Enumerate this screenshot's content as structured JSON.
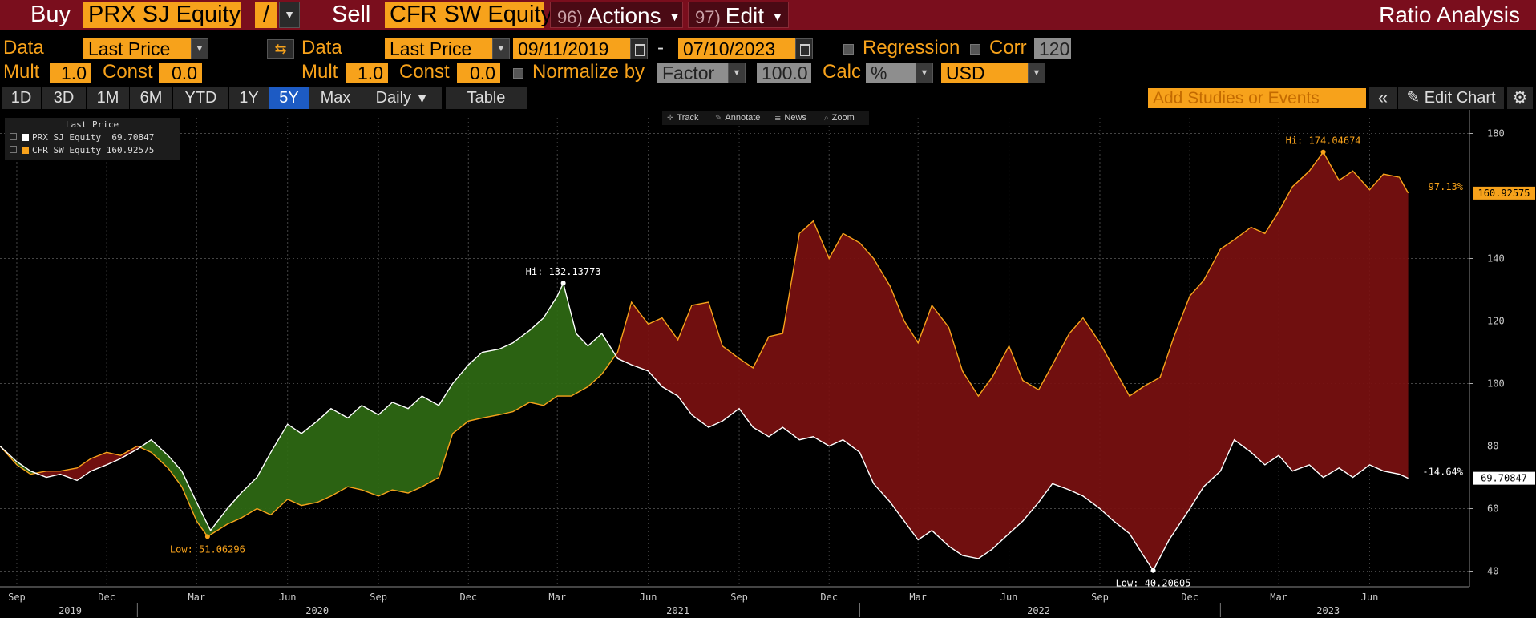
{
  "topbar": {
    "buy_label": "Buy",
    "buy_ticker": "PRX SJ Equity",
    "operator": "/",
    "sell_label": "Sell",
    "sell_ticker": "CFR SW Equity",
    "actions_num": "96)",
    "actions_label": "Actions",
    "edit_num": "97)",
    "edit_label": "Edit",
    "title": "Ratio Analysis"
  },
  "row1": {
    "data_label_1": "Data",
    "data_value_1": "Last Price",
    "data_label_2": "Data",
    "data_value_2": "Last Price",
    "start_date": "09/11/2019",
    "date_sep": "-",
    "end_date": "07/10/2023",
    "regression_label": "Regression",
    "corr_label": "Corr",
    "corr_value": "120"
  },
  "row2": {
    "mult_label_1": "Mult",
    "mult_value_1": "1.0",
    "const_label_1": "Const",
    "const_value_1": "0.0",
    "mult_label_2": "Mult",
    "mult_value_2": "1.0",
    "const_label_2": "Const",
    "const_value_2": "0.0",
    "normalize_label": "Normalize by",
    "normalize_value": "Factor",
    "normalize_amount": "100.0",
    "calc_label": "Calc",
    "calc_value": "%",
    "currency": "USD"
  },
  "rangebar": {
    "ranges": [
      "1D",
      "3D",
      "1M",
      "6M",
      "YTD",
      "1Y",
      "5Y",
      "Max"
    ],
    "active": "5Y",
    "frequency": "Daily",
    "table_label": "Table",
    "studies_placeholder": "Add Studies or Events",
    "edit_chart_label": "Edit Chart"
  },
  "chart_tools": [
    "Track",
    "Annotate",
    "News",
    "Zoom"
  ],
  "chart_data": {
    "type": "line",
    "legend": {
      "header": "Last Price",
      "placement": "top-left",
      "items": [
        {
          "name": "PRX SJ Equity",
          "value": "69.70847",
          "color": "#ffffff"
        },
        {
          "name": "CFR SW Equity",
          "value": "160.92575",
          "color": "#f7a21b"
        }
      ]
    },
    "y_ticks": [
      40,
      60,
      80,
      100,
      120,
      140,
      160,
      180
    ],
    "ylim": [
      35,
      185
    ],
    "x_month_labels": [
      {
        "label": "Sep",
        "date": "2019-09"
      },
      {
        "label": "Dec",
        "date": "2019-12"
      },
      {
        "label": "Mar",
        "date": "2020-03"
      },
      {
        "label": "Jun",
        "date": "2020-06"
      },
      {
        "label": "Sep",
        "date": "2020-09"
      },
      {
        "label": "Dec",
        "date": "2020-12"
      },
      {
        "label": "Mar",
        "date": "2021-03"
      },
      {
        "label": "Jun",
        "date": "2021-06"
      },
      {
        "label": "Sep",
        "date": "2021-09"
      },
      {
        "label": "Dec",
        "date": "2021-12"
      },
      {
        "label": "Mar",
        "date": "2022-03"
      },
      {
        "label": "Jun",
        "date": "2022-06"
      },
      {
        "label": "Sep",
        "date": "2022-09"
      },
      {
        "label": "Dec",
        "date": "2022-12"
      },
      {
        "label": "Mar",
        "date": "2023-03"
      },
      {
        "label": "Jun",
        "date": "2023-06"
      }
    ],
    "x_year_labels": [
      {
        "label": "2019",
        "date": "2019-10-25"
      },
      {
        "label": "2020",
        "date": "2020-07-01"
      },
      {
        "label": "2021",
        "date": "2021-07-01"
      },
      {
        "label": "2022",
        "date": "2022-07-01"
      },
      {
        "label": "2023",
        "date": "2023-04-20"
      }
    ],
    "year_dividers": [
      "2020-01-01",
      "2021-01-01",
      "2022-01-01",
      "2023-01-01"
    ],
    "xlim": [
      "2019-08-15",
      "2023-09-10"
    ],
    "series": [
      {
        "name": "PRX SJ Equity",
        "color": "#ffffff",
        "points": [
          [
            "2019-08-15",
            80
          ],
          [
            "2019-09-01",
            75
          ],
          [
            "2019-09-15",
            72
          ],
          [
            "2019-10-01",
            70
          ],
          [
            "2019-10-15",
            71
          ],
          [
            "2019-11-01",
            69
          ],
          [
            "2019-11-15",
            72
          ],
          [
            "2019-12-01",
            74
          ],
          [
            "2019-12-15",
            76
          ],
          [
            "2020-01-01",
            79
          ],
          [
            "2020-01-15",
            82
          ],
          [
            "2020-02-01",
            77
          ],
          [
            "2020-02-15",
            72
          ],
          [
            "2020-03-01",
            62
          ],
          [
            "2020-03-15",
            53
          ],
          [
            "2020-04-01",
            60
          ],
          [
            "2020-04-15",
            65
          ],
          [
            "2020-05-01",
            70
          ],
          [
            "2020-05-15",
            78
          ],
          [
            "2020-06-01",
            87
          ],
          [
            "2020-06-15",
            84
          ],
          [
            "2020-07-01",
            88
          ],
          [
            "2020-07-15",
            92
          ],
          [
            "2020-08-01",
            89
          ],
          [
            "2020-08-15",
            93
          ],
          [
            "2020-09-01",
            90
          ],
          [
            "2020-09-15",
            94
          ],
          [
            "2020-10-01",
            92
          ],
          [
            "2020-10-15",
            96
          ],
          [
            "2020-11-01",
            93
          ],
          [
            "2020-11-15",
            100
          ],
          [
            "2020-12-01",
            106
          ],
          [
            "2020-12-15",
            110
          ],
          [
            "2021-01-01",
            111
          ],
          [
            "2021-01-15",
            113
          ],
          [
            "2021-02-01",
            117
          ],
          [
            "2021-02-15",
            121
          ],
          [
            "2021-03-01",
            128
          ],
          [
            "2021-03-07",
            132.13773
          ],
          [
            "2021-03-20",
            116
          ],
          [
            "2021-04-01",
            112
          ],
          [
            "2021-04-15",
            116
          ],
          [
            "2021-05-01",
            108
          ],
          [
            "2021-05-15",
            106
          ],
          [
            "2021-06-01",
            104
          ],
          [
            "2021-06-15",
            99
          ],
          [
            "2021-07-01",
            96
          ],
          [
            "2021-07-15",
            90
          ],
          [
            "2021-08-01",
            86
          ],
          [
            "2021-08-15",
            88
          ],
          [
            "2021-09-01",
            92
          ],
          [
            "2021-09-15",
            86
          ],
          [
            "2021-10-01",
            83
          ],
          [
            "2021-10-15",
            86
          ],
          [
            "2021-11-01",
            82
          ],
          [
            "2021-11-15",
            83
          ],
          [
            "2021-12-01",
            80
          ],
          [
            "2021-12-15",
            82
          ],
          [
            "2022-01-01",
            78
          ],
          [
            "2022-01-15",
            68
          ],
          [
            "2022-02-01",
            62
          ],
          [
            "2022-02-15",
            56
          ],
          [
            "2022-03-01",
            50
          ],
          [
            "2022-03-15",
            53
          ],
          [
            "2022-04-01",
            48
          ],
          [
            "2022-04-15",
            45
          ],
          [
            "2022-05-01",
            44
          ],
          [
            "2022-05-15",
            47
          ],
          [
            "2022-06-01",
            52
          ],
          [
            "2022-06-15",
            56
          ],
          [
            "2022-07-01",
            62
          ],
          [
            "2022-07-15",
            68
          ],
          [
            "2022-08-01",
            66
          ],
          [
            "2022-08-15",
            64
          ],
          [
            "2022-09-01",
            60
          ],
          [
            "2022-09-15",
            56
          ],
          [
            "2022-10-01",
            52
          ],
          [
            "2022-10-15",
            45
          ],
          [
            "2022-10-25",
            40.20605
          ],
          [
            "2022-11-10",
            50
          ],
          [
            "2022-12-01",
            60
          ],
          [
            "2022-12-15",
            67
          ],
          [
            "2023-01-01",
            72
          ],
          [
            "2023-01-15",
            82
          ],
          [
            "2023-02-01",
            78
          ],
          [
            "2023-02-15",
            74
          ],
          [
            "2023-03-01",
            77
          ],
          [
            "2023-03-15",
            72
          ],
          [
            "2023-04-01",
            74
          ],
          [
            "2023-04-15",
            70
          ],
          [
            "2023-05-01",
            73
          ],
          [
            "2023-05-15",
            70
          ],
          [
            "2023-06-01",
            74
          ],
          [
            "2023-06-15",
            72
          ],
          [
            "2023-07-01",
            71
          ],
          [
            "2023-07-10",
            69.70847
          ]
        ]
      },
      {
        "name": "CFR SW Equity",
        "color": "#f7a21b",
        "points": [
          [
            "2019-08-15",
            80
          ],
          [
            "2019-09-01",
            74
          ],
          [
            "2019-09-15",
            71
          ],
          [
            "2019-10-01",
            72
          ],
          [
            "2019-10-15",
            72
          ],
          [
            "2019-11-01",
            73
          ],
          [
            "2019-11-15",
            76
          ],
          [
            "2019-12-01",
            78
          ],
          [
            "2019-12-15",
            77
          ],
          [
            "2020-01-01",
            80
          ],
          [
            "2020-01-15",
            78
          ],
          [
            "2020-02-01",
            73
          ],
          [
            "2020-02-15",
            67
          ],
          [
            "2020-03-01",
            56
          ],
          [
            "2020-03-12",
            51.06296
          ],
          [
            "2020-04-01",
            55
          ],
          [
            "2020-04-15",
            57
          ],
          [
            "2020-05-01",
            60
          ],
          [
            "2020-05-15",
            58
          ],
          [
            "2020-06-01",
            63
          ],
          [
            "2020-06-15",
            61
          ],
          [
            "2020-07-01",
            62
          ],
          [
            "2020-07-15",
            64
          ],
          [
            "2020-08-01",
            67
          ],
          [
            "2020-08-15",
            66
          ],
          [
            "2020-09-01",
            64
          ],
          [
            "2020-09-15",
            66
          ],
          [
            "2020-10-01",
            65
          ],
          [
            "2020-10-15",
            67
          ],
          [
            "2020-11-01",
            70
          ],
          [
            "2020-11-15",
            84
          ],
          [
            "2020-12-01",
            88
          ],
          [
            "2020-12-15",
            89
          ],
          [
            "2021-01-01",
            90
          ],
          [
            "2021-01-15",
            91
          ],
          [
            "2021-02-01",
            94
          ],
          [
            "2021-02-15",
            93
          ],
          [
            "2021-03-01",
            96
          ],
          [
            "2021-03-15",
            96
          ],
          [
            "2021-04-01",
            99
          ],
          [
            "2021-04-15",
            103
          ],
          [
            "2021-05-01",
            110
          ],
          [
            "2021-05-15",
            126
          ],
          [
            "2021-06-01",
            119
          ],
          [
            "2021-06-15",
            121
          ],
          [
            "2021-07-01",
            114
          ],
          [
            "2021-07-15",
            125
          ],
          [
            "2021-08-01",
            126
          ],
          [
            "2021-08-15",
            112
          ],
          [
            "2021-09-01",
            108
          ],
          [
            "2021-09-15",
            105
          ],
          [
            "2021-10-01",
            115
          ],
          [
            "2021-10-15",
            116
          ],
          [
            "2021-11-01",
            148
          ],
          [
            "2021-11-15",
            152
          ],
          [
            "2021-12-01",
            140
          ],
          [
            "2021-12-15",
            148
          ],
          [
            "2022-01-01",
            145
          ],
          [
            "2022-01-15",
            140
          ],
          [
            "2022-02-01",
            131
          ],
          [
            "2022-02-15",
            120
          ],
          [
            "2022-03-01",
            113
          ],
          [
            "2022-03-15",
            125
          ],
          [
            "2022-04-01",
            118
          ],
          [
            "2022-04-15",
            104
          ],
          [
            "2022-05-01",
            96
          ],
          [
            "2022-05-15",
            102
          ],
          [
            "2022-06-01",
            112
          ],
          [
            "2022-06-15",
            101
          ],
          [
            "2022-07-01",
            98
          ],
          [
            "2022-07-15",
            106
          ],
          [
            "2022-08-01",
            116
          ],
          [
            "2022-08-15",
            121
          ],
          [
            "2022-09-01",
            113
          ],
          [
            "2022-09-15",
            105
          ],
          [
            "2022-10-01",
            96
          ],
          [
            "2022-10-15",
            99
          ],
          [
            "2022-11-01",
            102
          ],
          [
            "2022-11-15",
            115
          ],
          [
            "2022-12-01",
            128
          ],
          [
            "2022-12-15",
            133
          ],
          [
            "2023-01-01",
            143
          ],
          [
            "2023-01-15",
            146
          ],
          [
            "2023-02-01",
            150
          ],
          [
            "2023-02-15",
            148
          ],
          [
            "2023-03-01",
            155
          ],
          [
            "2023-03-15",
            163
          ],
          [
            "2023-04-01",
            168
          ],
          [
            "2023-04-15",
            174.04674
          ],
          [
            "2023-05-01",
            165
          ],
          [
            "2023-05-15",
            168
          ],
          [
            "2023-06-01",
            162
          ],
          [
            "2023-06-15",
            167
          ],
          [
            "2023-07-01",
            166
          ],
          [
            "2023-07-10",
            160.92575
          ]
        ]
      }
    ],
    "annotations": [
      {
        "text": "Hi: 132.13773",
        "date": "2021-03-07",
        "value": 132.13773,
        "color": "#ffffff",
        "side": "above"
      },
      {
        "text": "Low: 51.06296",
        "date": "2020-03-12",
        "value": 51.06296,
        "color": "#f7a21b",
        "side": "below"
      },
      {
        "text": "Hi: 174.04674",
        "date": "2023-04-15",
        "value": 174.04674,
        "color": "#f7a21b",
        "side": "above"
      },
      {
        "text": "Low: 40.20605",
        "date": "2022-10-25",
        "value": 40.20605,
        "color": "#ffffff",
        "side": "below"
      }
    ],
    "end_labels": [
      {
        "pct": "97.13%",
        "value": "160.92575",
        "level": 160.92575,
        "color": "#f7a21b"
      },
      {
        "pct": "-14.64%",
        "value": "69.70847",
        "level": 69.70847,
        "color": "#ffffff"
      }
    ],
    "fill_colors": {
      "buy_above": "#2f6a14",
      "sell_above": "#7a1010"
    },
    "grid": true
  }
}
